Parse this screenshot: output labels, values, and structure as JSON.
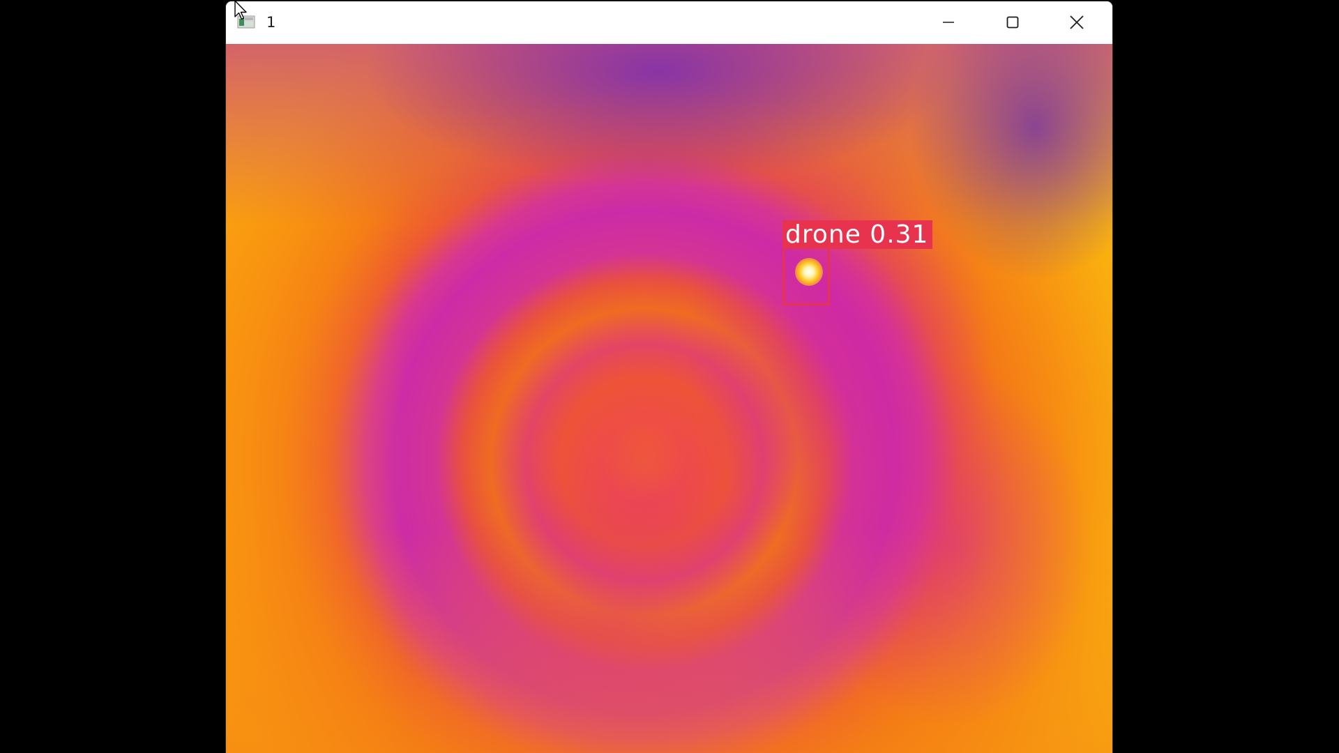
{
  "window": {
    "title": "1",
    "controls": {
      "minimize": "minimize-icon",
      "maximize": "maximize-icon",
      "close": "close-icon"
    }
  },
  "detection": {
    "class_label": "drone",
    "confidence": "0.31",
    "label_text": "drone 0.31",
    "box_color": "#e8334e"
  },
  "colors": {
    "desktop_background": "#000000",
    "titlebar_background": "#ffffff",
    "thermal_palette": [
      "#6e28be",
      "#cc2ba7",
      "#e8386a",
      "#f47a17",
      "#fbc20e"
    ]
  }
}
